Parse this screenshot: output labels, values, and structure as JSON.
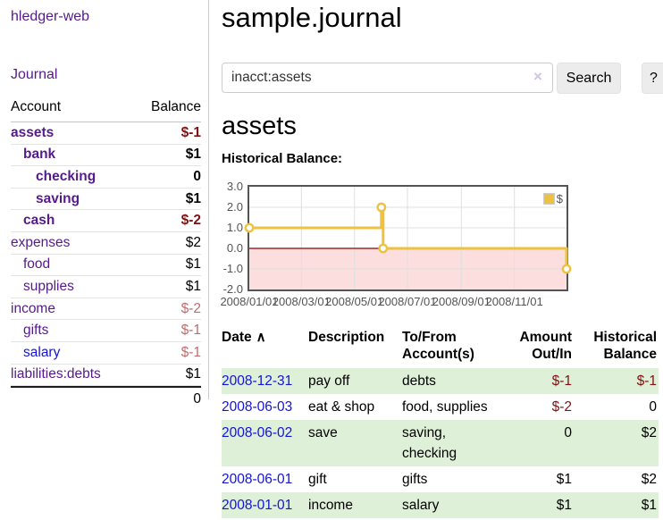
{
  "app": {
    "brand": "hledger-web"
  },
  "sidebar": {
    "journal_link": "Journal",
    "accounts_header": {
      "account": "Account",
      "balance": "Balance"
    },
    "accounts": [
      {
        "name": "assets",
        "depth": 0,
        "bold": true,
        "balance": "$-1",
        "negative": "strong"
      },
      {
        "name": "bank",
        "depth": 1,
        "bold": true,
        "balance": "$1",
        "negative": null
      },
      {
        "name": "checking",
        "depth": 2,
        "bold": true,
        "balance": "0",
        "negative": null
      },
      {
        "name": "saving",
        "depth": 2,
        "bold": true,
        "balance": "$1",
        "negative": null
      },
      {
        "name": "cash",
        "depth": 1,
        "bold": true,
        "balance": "$-2",
        "negative": "strong"
      },
      {
        "name": "expenses",
        "depth": 0,
        "bold": false,
        "balance": "$2",
        "negative": null
      },
      {
        "name": "food",
        "depth": 1,
        "bold": false,
        "balance": "$1",
        "negative": null
      },
      {
        "name": "supplies",
        "depth": 1,
        "bold": false,
        "balance": "$1",
        "negative": null
      },
      {
        "name": "income",
        "depth": 0,
        "bold": false,
        "balance": "$-2",
        "negative": "soft"
      },
      {
        "name": "gifts",
        "depth": 1,
        "bold": false,
        "balance": "$-1",
        "negative": "soft"
      },
      {
        "name": "salary",
        "depth": 1,
        "bold": false,
        "balance": "$-1",
        "negative": "soft",
        "link_tone": "unvisited"
      },
      {
        "name": "liabilities:debts",
        "depth": 0,
        "bold": false,
        "balance": "$1",
        "negative": null
      }
    ],
    "total": "0"
  },
  "header": {
    "title": "sample.journal"
  },
  "search": {
    "value": "inacct:assets",
    "button_label": "Search",
    "help_label": "?"
  },
  "icons": {
    "clear": "×",
    "sort_asc": "∧"
  },
  "account_page": {
    "title": "assets",
    "chart_label": "Historical Balance:"
  },
  "chart_data": {
    "type": "line",
    "title": "Historical Balance",
    "x_range_days": [
      0,
      365
    ],
    "ylim": [
      -2,
      3
    ],
    "y_ticks": [
      {
        "label": "3.0",
        "value": 3
      },
      {
        "label": "2.0",
        "value": 2
      },
      {
        "label": "1.0",
        "value": 1
      },
      {
        "label": "0.0",
        "value": 0
      },
      {
        "label": "-1.0",
        "value": -1
      },
      {
        "label": "-2.0",
        "value": -2
      }
    ],
    "x_ticks": [
      {
        "label": "2008/01/01",
        "day": 0
      },
      {
        "label": "2008/03/01",
        "day": 60
      },
      {
        "label": "2008/05/01",
        "day": 121
      },
      {
        "label": "2008/07/01",
        "day": 182
      },
      {
        "label": "2008/09/01",
        "day": 244
      },
      {
        "label": "2008/11/01",
        "day": 305
      }
    ],
    "series": [
      {
        "name": "$",
        "color": "#EDC240",
        "style": "step",
        "points": [
          {
            "date": "2008-01-01",
            "day": 0,
            "value": 1
          },
          {
            "date": "2008-06-01",
            "day": 152,
            "value": 2
          },
          {
            "date": "2008-06-03",
            "day": 154,
            "value": 0
          },
          {
            "date": "2008-12-31",
            "day": 365,
            "value": -1
          }
        ]
      }
    ],
    "legend_position": "top-right",
    "grid": true,
    "grid_color": "#e0e0e0",
    "zero_line_color": "#8b0000",
    "negative_region_fill": "#fcdede"
  },
  "register": {
    "columns": {
      "date": "Date",
      "description": "Description",
      "tofrom": "To/From Account(s)",
      "amount": "Amount Out/In",
      "balance": "Historical Balance"
    },
    "rows": [
      {
        "date": "2008-12-31",
        "description": "pay off",
        "accounts": "debts",
        "amount": "$-1",
        "amount_negative": true,
        "balance": "$-1",
        "balance_negative": true
      },
      {
        "date": "2008-06-03",
        "description": "eat & shop",
        "accounts": "food, supplies",
        "amount": "$-2",
        "amount_negative": true,
        "balance": "0",
        "balance_negative": false
      },
      {
        "date": "2008-06-02",
        "description": "save",
        "accounts": "saving, checking",
        "amount": "0",
        "amount_negative": false,
        "balance": "$2",
        "balance_negative": false
      },
      {
        "date": "2008-06-01",
        "description": "gift",
        "accounts": "gifts",
        "amount": "$1",
        "amount_negative": false,
        "balance": "$2",
        "balance_negative": false
      },
      {
        "date": "2008-01-01",
        "description": "income",
        "accounts": "salary",
        "amount": "$1",
        "amount_negative": false,
        "balance": "$1",
        "balance_negative": false
      }
    ]
  },
  "colors": {
    "visited_link": "#551A8B",
    "unvisited_link": "#1414d6",
    "negative_strong": "#7f1212",
    "negative_soft": "#bd6e6e",
    "row_stripe": "#dff0d8",
    "chart_line": "#EDC240"
  }
}
